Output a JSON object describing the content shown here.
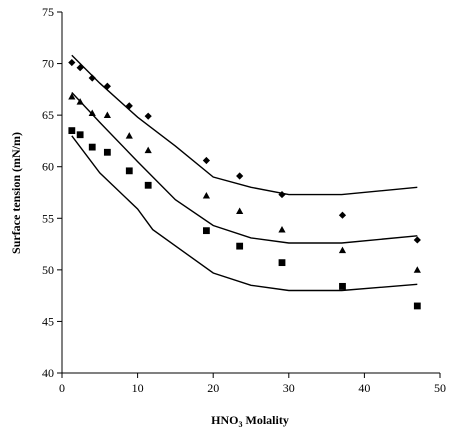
{
  "chart_data": {
    "type": "scatter",
    "title": "",
    "xlabel_main": "HNO",
    "xlabel_sub": "3",
    "xlabel_rest": " Molality",
    "ylabel": "Surface tension (mN/m)",
    "xlim": [
      0,
      50
    ],
    "ylim": [
      40,
      75
    ],
    "xticks": [
      0,
      10,
      20,
      30,
      40,
      50
    ],
    "yticks": [
      40,
      45,
      50,
      55,
      60,
      65,
      70,
      75
    ],
    "grid": false,
    "legend": "none",
    "series": [
      {
        "marker": "diamond",
        "x": [
          1.3,
          2.4,
          4.0,
          6.0,
          8.9,
          11.4,
          19.1,
          23.5,
          29.1,
          37.1,
          47.0
        ],
        "y": [
          70.1,
          69.6,
          68.6,
          67.8,
          65.9,
          64.9,
          60.6,
          59.1,
          57.3,
          55.3,
          52.9
        ]
      },
      {
        "marker": "triangle",
        "x": [
          1.3,
          2.4,
          4.0,
          6.0,
          8.9,
          11.4,
          19.1,
          23.5,
          29.1,
          37.1,
          47.0
        ],
        "y": [
          66.8,
          66.3,
          65.2,
          65.0,
          63.0,
          61.6,
          57.2,
          55.7,
          53.9,
          51.9,
          50.0
        ]
      },
      {
        "marker": "square",
        "x": [
          1.3,
          2.4,
          4.0,
          6.0,
          8.9,
          11.4,
          19.1,
          23.5,
          29.1,
          37.1,
          47.0
        ],
        "y": [
          63.5,
          63.1,
          61.9,
          61.4,
          59.6,
          58.2,
          53.8,
          52.3,
          50.7,
          48.4,
          46.5
        ]
      }
    ],
    "fit_lines": [
      {
        "x": [
          1.3,
          5,
          10,
          15,
          20,
          25,
          30,
          37,
          47
        ],
        "y": [
          70.8,
          68.1,
          64.8,
          62.0,
          59.0,
          58.0,
          57.3,
          57.3,
          58.0
        ]
      },
      {
        "x": [
          1.3,
          5,
          10,
          15,
          20,
          25,
          30,
          37,
          47
        ],
        "y": [
          67.2,
          64.3,
          60.5,
          56.8,
          54.3,
          53.1,
          52.6,
          52.6,
          53.3
        ]
      },
      {
        "x": [
          1.3,
          5,
          10,
          12,
          20,
          25,
          30,
          37,
          47
        ],
        "y": [
          63.0,
          59.4,
          55.9,
          53.9,
          49.7,
          48.5,
          48.0,
          48.0,
          48.6
        ]
      }
    ]
  }
}
